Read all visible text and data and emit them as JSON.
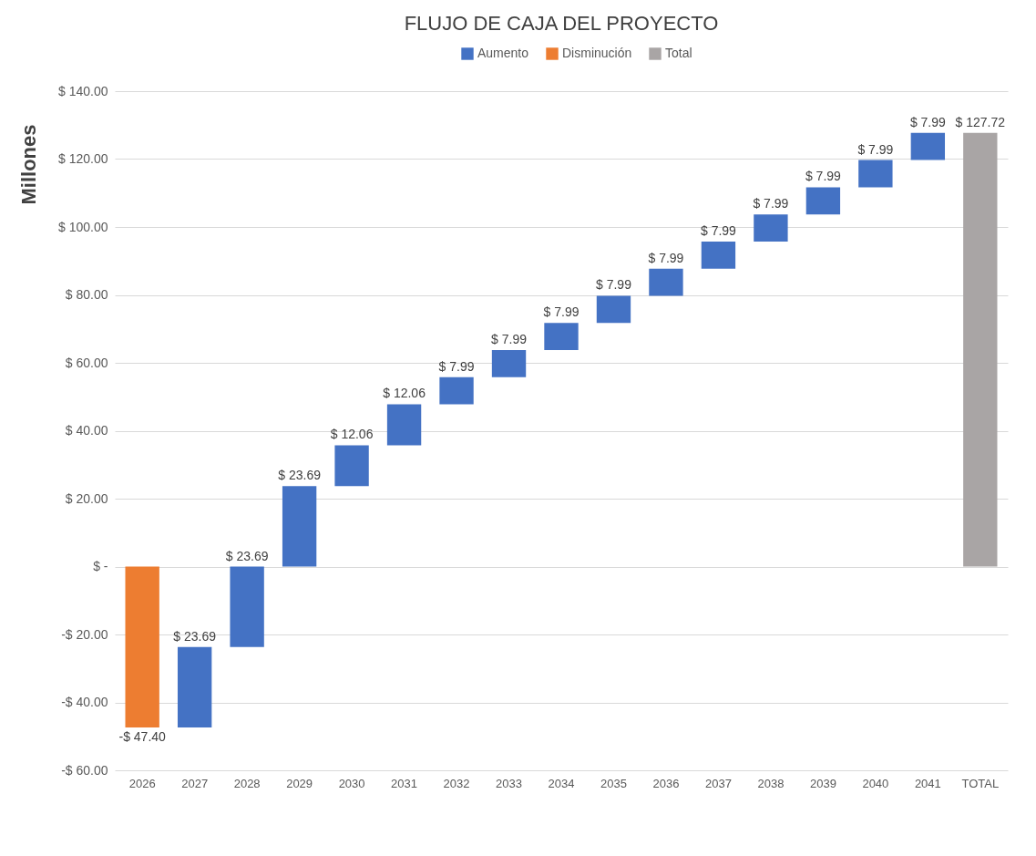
{
  "chart_data": {
    "type": "bar",
    "title": "FLUJO DE CAJA DEL PROYECTO",
    "ylabel": "Millones",
    "categories": [
      "2026",
      "2027",
      "2028",
      "2029",
      "2030",
      "2031",
      "2032",
      "2033",
      "2034",
      "2035",
      "2036",
      "2037",
      "2038",
      "2039",
      "2040",
      "2041",
      "TOTAL"
    ],
    "series": [
      {
        "name": "Aumento",
        "color": "#4472c4",
        "base": [
          null,
          -47.4,
          -23.71,
          -0.02,
          23.67,
          35.73,
          47.79,
          55.78,
          63.77,
          71.76,
          79.75,
          87.74,
          95.73,
          103.72,
          111.71,
          119.7,
          null
        ],
        "values": [
          null,
          23.69,
          23.69,
          23.69,
          12.06,
          12.06,
          7.99,
          7.99,
          7.99,
          7.99,
          7.99,
          7.99,
          7.99,
          7.99,
          7.99,
          7.99,
          null
        ],
        "value_labels": [
          null,
          "$ 23.69",
          "$ 23.69",
          "$ 23.69",
          "$ 12.06",
          "$ 12.06",
          "$ 7.99",
          "$ 7.99",
          "$ 7.99",
          "$ 7.99",
          "$ 7.99",
          "$ 7.99",
          "$ 7.99",
          "$ 7.99",
          "$ 7.99",
          "$ 7.99",
          null
        ]
      },
      {
        "name": "Disminución",
        "color": "#ed7d31",
        "base": [
          0,
          null,
          null,
          null,
          null,
          null,
          null,
          null,
          null,
          null,
          null,
          null,
          null,
          null,
          null,
          null,
          null
        ],
        "values": [
          -47.4,
          null,
          null,
          null,
          null,
          null,
          null,
          null,
          null,
          null,
          null,
          null,
          null,
          null,
          null,
          null,
          null
        ],
        "value_labels": [
          "-$ 47.40",
          null,
          null,
          null,
          null,
          null,
          null,
          null,
          null,
          null,
          null,
          null,
          null,
          null,
          null,
          null,
          null
        ]
      },
      {
        "name": "Total",
        "color": "#a9a5a5",
        "base": [
          null,
          null,
          null,
          null,
          null,
          null,
          null,
          null,
          null,
          null,
          null,
          null,
          null,
          null,
          null,
          null,
          0
        ],
        "values": [
          null,
          null,
          null,
          null,
          null,
          null,
          null,
          null,
          null,
          null,
          null,
          null,
          null,
          null,
          null,
          null,
          127.72
        ],
        "value_labels": [
          null,
          null,
          null,
          null,
          null,
          null,
          null,
          null,
          null,
          null,
          null,
          null,
          null,
          null,
          null,
          null,
          "$ 127.72"
        ]
      }
    ],
    "ylim": [
      -60,
      140
    ],
    "yticks": [
      {
        "value": -60,
        "label": "-$ 60.00"
      },
      {
        "value": -40,
        "label": "-$ 40.00"
      },
      {
        "value": -20,
        "label": "-$ 20.00"
      },
      {
        "value": 0,
        "label": "$ -"
      },
      {
        "value": 20,
        "label": "$ 20.00"
      },
      {
        "value": 40,
        "label": "$ 40.00"
      },
      {
        "value": 60,
        "label": "$ 60.00"
      },
      {
        "value": 80,
        "label": "$ 80.00"
      },
      {
        "value": 100,
        "label": "$ 100.00"
      },
      {
        "value": 120,
        "label": "$ 120.00"
      },
      {
        "value": 140,
        "label": "$ 140.00"
      }
    ],
    "grid": "y",
    "legend": "top"
  }
}
